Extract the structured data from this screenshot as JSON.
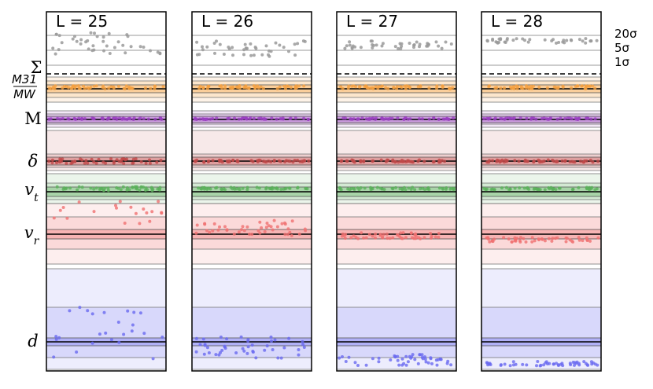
{
  "chart_data": {
    "type": "scatter",
    "panels": [
      {
        "title": "L = 25",
        "seed": 25
      },
      {
        "title": "L = 26",
        "seed": 26
      },
      {
        "title": "L = 27",
        "seed": 27
      },
      {
        "title": "L = 28",
        "seed": 28
      }
    ],
    "sigma_levels": [
      "20σ",
      "5σ",
      "1σ"
    ],
    "rows": [
      {
        "key": "sigma",
        "label": "Σ",
        "color": "#888888",
        "spread": [
          0.0,
          0.85,
          0.85,
          0.25
        ]
      },
      {
        "key": "ratio",
        "label": "M31/MW",
        "color": "#f5a040",
        "spread": [
          0.02,
          0.02,
          0.02,
          0.02
        ]
      },
      {
        "key": "mass",
        "label": "M",
        "color": "#9a40c0",
        "spread": [
          0.005,
          0.005,
          0.005,
          0.005
        ]
      },
      {
        "key": "delta",
        "label": "δ",
        "color": "#c04848",
        "spread": [
          0.05,
          0.03,
          0.02,
          0.02
        ]
      },
      {
        "key": "vt",
        "label": "v_t",
        "color": "#5ab05a",
        "spread": [
          0.08,
          0.05,
          0.03,
          0.03
        ]
      },
      {
        "key": "vr",
        "label": "v_r",
        "color": "#f07070",
        "spread": [
          1.2,
          0.7,
          0.25,
          0.3
        ]
      },
      {
        "key": "d",
        "label": "d",
        "color": "#6a6af0",
        "spread": [
          3.0,
          1.0,
          0.85,
          0.9
        ]
      }
    ],
    "legend": {
      "sigma_order": [
        "20σ",
        "5σ",
        "1σ"
      ]
    }
  }
}
